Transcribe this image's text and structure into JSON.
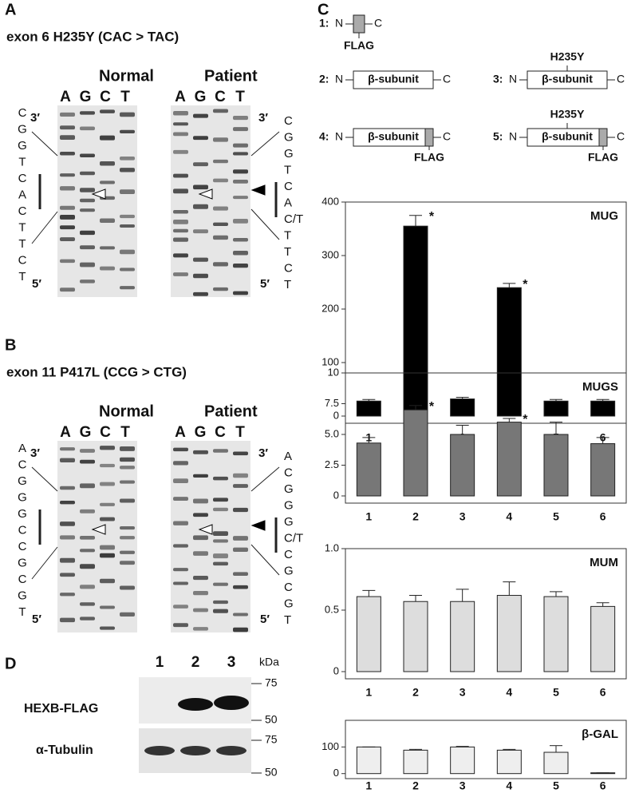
{
  "panels": {
    "A": {
      "label": "A",
      "title": "exon 6   H235Y (CAC > TAC)",
      "normal": "Normal",
      "patient": "Patient",
      "lanes": [
        "A",
        "G",
        "C",
        "T"
      ],
      "top": "3′",
      "bottom": "5′",
      "seq_normal": [
        "C",
        "G",
        "G",
        "T",
        "C",
        "A",
        "C",
        "T",
        "T",
        "C",
        "T"
      ],
      "seq_patient": [
        "C",
        "G",
        "G",
        "T",
        "C",
        "A",
        "C/T",
        "T",
        "T",
        "C",
        "T"
      ]
    },
    "B": {
      "label": "B",
      "title": "exon 11   P417L (CCG > CTG)",
      "normal": "Normal",
      "patient": "Patient",
      "lanes": [
        "A",
        "G",
        "C",
        "T"
      ],
      "top": "3′",
      "bottom": "5′",
      "seq_normal": [
        "A",
        "C",
        "G",
        "G",
        "G",
        "C",
        "C",
        "G",
        "C",
        "G",
        "T"
      ],
      "seq_patient": [
        "A",
        "C",
        "G",
        "G",
        "G",
        "C/T",
        "C",
        "G",
        "C",
        "G",
        "T"
      ]
    },
    "C": {
      "label": "C",
      "constructs": [
        {
          "num": "1:",
          "n": "N",
          "c": "C",
          "tag": "FLAG"
        },
        {
          "num": "2:",
          "n": "N",
          "c": "C",
          "domain": "β-subunit"
        },
        {
          "num": "3:",
          "n": "N",
          "c": "C",
          "domain": "β-subunit",
          "mutation": "H235Y"
        },
        {
          "num": "4:",
          "n": "N",
          "c": "C",
          "domain": "β-subunit",
          "tag": "FLAG"
        },
        {
          "num": "5:",
          "n": "N",
          "c": "C",
          "domain": "β-subunit",
          "mutation": "H235Y",
          "tag": "FLAG"
        }
      ]
    },
    "D": {
      "label": "D",
      "lanes": [
        "1",
        "2",
        "3"
      ],
      "unit": "kDa",
      "row1": "HEXB-FLAG",
      "row2": "α-Tubulin",
      "markers1": [
        "75",
        "50"
      ],
      "markers2": [
        "75",
        "50"
      ]
    }
  },
  "chart_data": [
    {
      "type": "bar",
      "label": "MUG",
      "categories": [
        "1",
        "2",
        "3",
        "4",
        "5",
        "6"
      ],
      "values": [
        28,
        355,
        32,
        240,
        28,
        28
      ],
      "errors": [
        3,
        20,
        3,
        8,
        3,
        3
      ],
      "color": "#000000",
      "ylim": [
        0,
        400
      ],
      "yticks": [
        0,
        100,
        200,
        300,
        400
      ],
      "annotations": [
        {
          "text": "*",
          "category": "2"
        },
        {
          "text": "*",
          "category": "4"
        }
      ]
    },
    {
      "type": "bar",
      "label": "MUGS",
      "categories": [
        "1",
        "2",
        "3",
        "4",
        "5",
        "6"
      ],
      "values": [
        4.3,
        7.0,
        5.0,
        6.0,
        5.0,
        4.25
      ],
      "errors": [
        0.45,
        0.35,
        0.75,
        0.3,
        1.0,
        0.5
      ],
      "color": "#777777",
      "ylim": [
        0,
        10
      ],
      "yticks": [
        0,
        2.5,
        {
          "value": 5,
          "label": "5.0"
        },
        7.5,
        10
      ],
      "annotations": [
        {
          "text": "*",
          "category": "2"
        },
        {
          "text": "*",
          "category": "4"
        }
      ]
    },
    {
      "type": "bar",
      "label": "MUM",
      "categories": [
        "1",
        "2",
        "3",
        "4",
        "5",
        "6"
      ],
      "values": [
        0.61,
        0.57,
        0.57,
        0.62,
        0.61,
        0.53
      ],
      "errors": [
        0.05,
        0.05,
        0.1,
        0.11,
        0.04,
        0.03
      ],
      "color": "#dddddd",
      "ylim": [
        0,
        1
      ],
      "yticks": [
        0,
        0.5,
        {
          "value": 1,
          "label": "1.0"
        }
      ]
    },
    {
      "type": "bar",
      "label": "β-GAL",
      "categories": [
        "1",
        "2",
        "3",
        "4",
        "5",
        "6"
      ],
      "values": [
        100,
        88,
        100,
        88,
        80,
        3
      ],
      "errors": [
        0,
        3,
        2,
        3,
        25,
        0
      ],
      "color": "#eeeeee",
      "ylim": [
        0,
        200
      ],
      "yticks": [
        0,
        100
      ]
    }
  ]
}
